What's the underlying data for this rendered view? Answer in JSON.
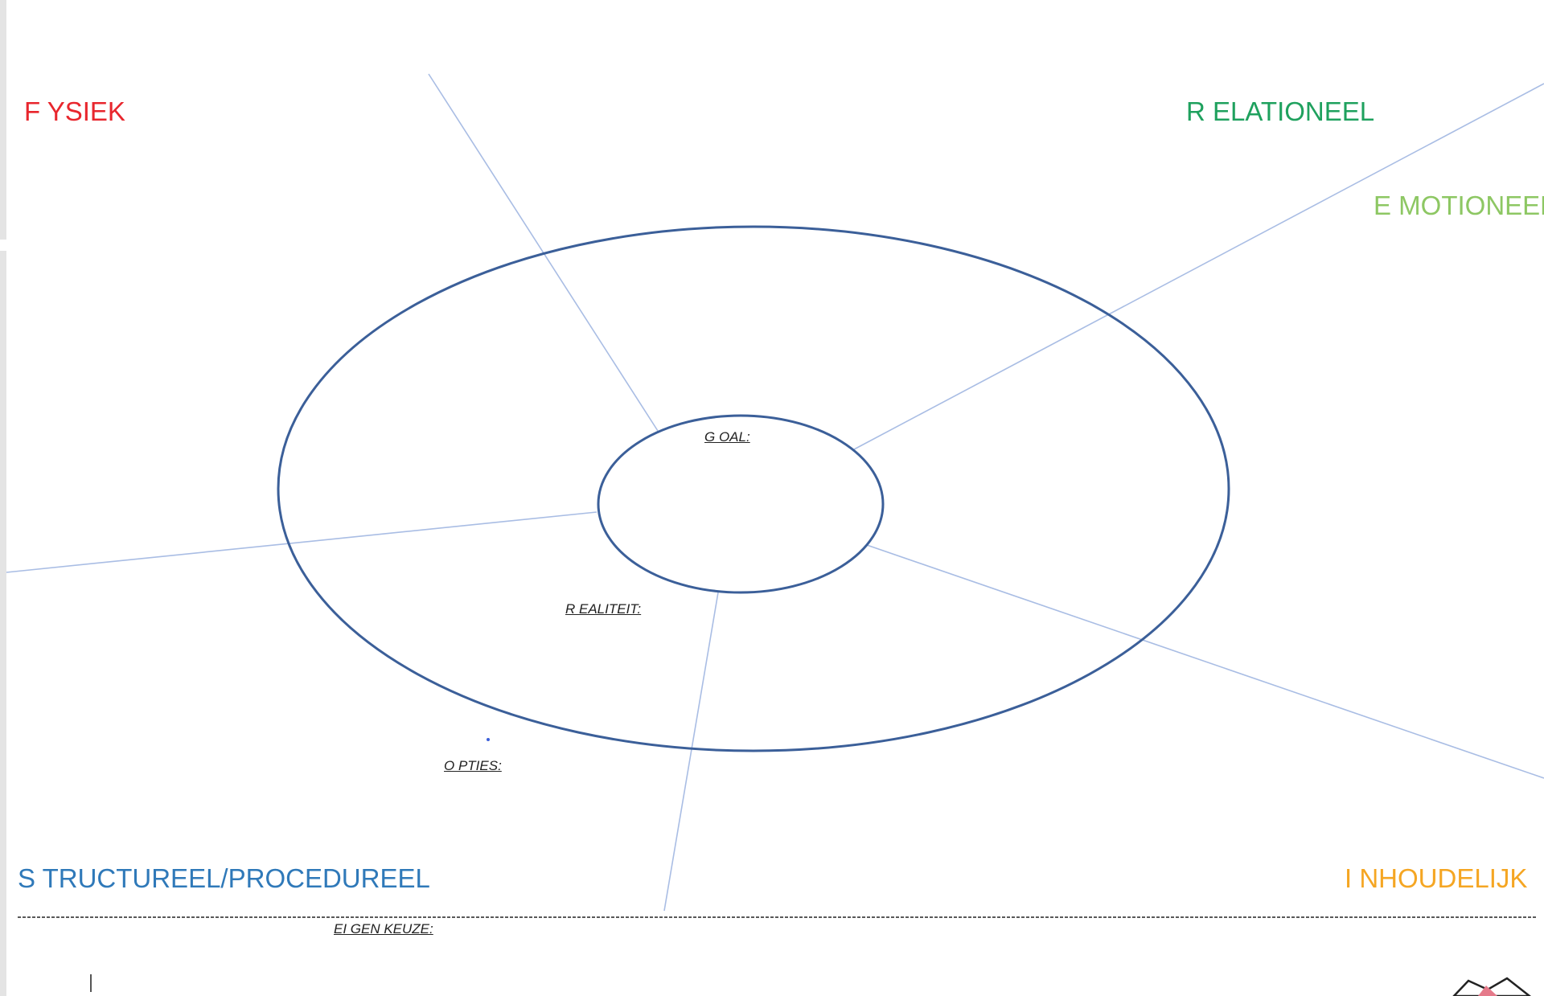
{
  "diagram": {
    "corners": {
      "fysiek": {
        "text": "F YSIEK",
        "color": "#e8262d"
      },
      "relationeel": {
        "text": "R ELATIONEEL",
        "color": "#1fa15e"
      },
      "emotioneel": {
        "text": "E MOTIONEEL",
        "color": "#8dc763"
      },
      "structureel": {
        "text": "S TRUCTUREEL/PROCEDUREEL",
        "color": "#2f79b9"
      },
      "inhoudelijk": {
        "text": "I NHOUDELIJK",
        "color": "#f5a623"
      }
    },
    "labels": {
      "goal": "G OAL:",
      "realiteit": "R EALITEIT:",
      "opties": "O PTIES:",
      "eigen_keuze": "EI GEN KEUZE:"
    },
    "colors": {
      "ellipse_stroke": "#3b5f99",
      "spoke_stroke": "#a9bde4",
      "divider": "#222222"
    }
  }
}
